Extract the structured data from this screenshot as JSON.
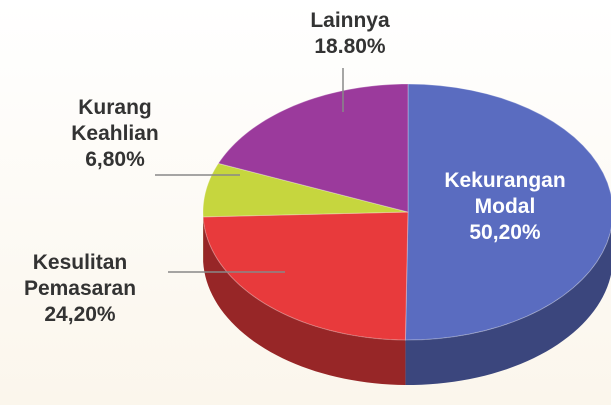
{
  "chart_data": {
    "type": "pie",
    "categories": [
      "Kekurangan Modal",
      "Kesulitan Pemasaran",
      "Kurang Keahlian",
      "Lainnya"
    ],
    "values": [
      50.2,
      24.2,
      6.8,
      18.8
    ],
    "value_labels": [
      "50,20%",
      "24,20%",
      "6,80%",
      "18.80%"
    ],
    "colors": [
      "#5a6cc0",
      "#e83a3c",
      "#c6d63e",
      "#9b3a9c"
    ]
  }
}
